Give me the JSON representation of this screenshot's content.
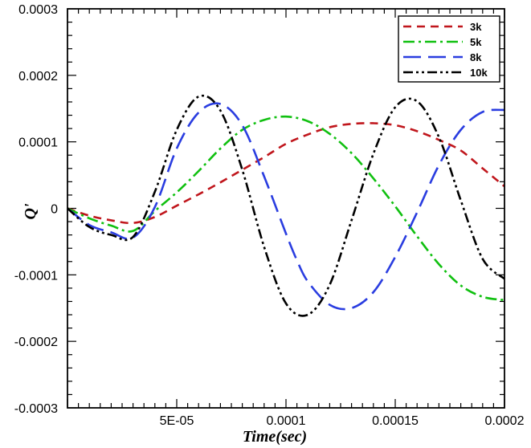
{
  "chart_data": {
    "type": "line",
    "title": "",
    "xlabel": "Time(sec)",
    "ylabel": "Q'",
    "xlim": [
      0,
      0.0002
    ],
    "ylim": [
      -0.0003,
      0.0003
    ],
    "x_ticks": [
      {
        "value": 5e-05,
        "label": "5E-05"
      },
      {
        "value": 0.0001,
        "label": "0.0001"
      },
      {
        "value": 0.00015,
        "label": "0.00015"
      },
      {
        "value": 0.0002,
        "label": "0.0002"
      }
    ],
    "y_ticks": [
      {
        "value": 0.0003,
        "label": "0.0003"
      },
      {
        "value": 0.0002,
        "label": "0.0002"
      },
      {
        "value": 0.0001,
        "label": "0.0001"
      },
      {
        "value": 0,
        "label": "0"
      },
      {
        "value": -0.0001,
        "label": "-0.0001"
      },
      {
        "value": -0.0002,
        "label": "-0.0002"
      },
      {
        "value": -0.0003,
        "label": "-0.0003"
      }
    ],
    "legend_position": "top-right",
    "grid": false,
    "series": [
      {
        "name": "3k",
        "color": "#c0161c",
        "dash": "10,7",
        "x": [
          0,
          1e-05,
          2e-05,
          3e-05,
          4e-05,
          5e-05,
          6e-05,
          7e-05,
          8e-05,
          9e-05,
          0.0001,
          0.00011,
          0.00012,
          0.00013,
          0.00014,
          0.00015,
          0.00016,
          0.00017,
          0.00018,
          0.00019,
          0.0002
        ],
        "y": [
          0,
          -1.1e-05,
          -1.8e-05,
          -2.2e-05,
          -1.3e-05,
          4e-06,
          2.1e-05,
          3.9e-05,
          5.8e-05,
          7.7e-05,
          9.7e-05,
          0.000111,
          0.000122,
          0.000127,
          0.000128,
          0.000125,
          0.000116,
          0.000103,
          8.7e-05,
          6e-05,
          3.3e-05
        ]
      },
      {
        "name": "5k",
        "color": "#10c010",
        "dash": "14,5,3,5",
        "x": [
          0,
          1e-05,
          2e-05,
          3e-05,
          4e-05,
          5e-05,
          6e-05,
          7e-05,
          8e-05,
          9e-05,
          0.0001,
          0.00011,
          0.00012,
          0.00013,
          0.00014,
          0.00015,
          0.00016,
          0.00017,
          0.00018,
          0.00019,
          0.0002
        ],
        "y": [
          0,
          -1.5e-05,
          -2.6e-05,
          -3.4e-05,
          -4e-06,
          2.4e-05,
          5.6e-05,
          9e-05,
          0.000118,
          0.000133,
          0.000138,
          0.000131,
          0.000112,
          8.3e-05,
          4.5e-05,
          3e-06,
          -4.2e-05,
          -8.4e-05,
          -0.000116,
          -0.000133,
          -0.000138
        ]
      },
      {
        "name": "8k",
        "color": "#2a3de0",
        "dash": "22,9",
        "x": [
          0,
          1e-05,
          2e-05,
          3e-05,
          4e-05,
          5e-05,
          6e-05,
          7e-05,
          8e-05,
          9e-05,
          0.0001,
          0.000105,
          0.00011,
          0.00012,
          0.00013,
          0.00014,
          0.00015,
          0.00016,
          0.00017,
          0.00018,
          0.00019,
          0.0002
        ],
        "y": [
          0,
          -2.5e-05,
          -3.6e-05,
          -4.4e-05,
          2e-06,
          9e-05,
          0.000144,
          0.000157,
          0.000125,
          4.8e-05,
          -3.8e-05,
          -7.8e-05,
          -0.00011,
          -0.000145,
          -0.00015,
          -0.000126,
          -7.3e-05,
          -6e-06,
          6.5e-05,
          0.000118,
          0.000145,
          0.000148
        ]
      },
      {
        "name": "10k",
        "color": "#000000",
        "dash": "12,4,3,4,3,4",
        "x": [
          0,
          1e-05,
          2e-05,
          3e-05,
          4e-05,
          5e-05,
          6e-05,
          7e-05,
          8e-05,
          9e-05,
          0.0001,
          0.00011,
          0.00012,
          0.00013,
          0.00014,
          0.00015,
          0.00016,
          0.00017,
          0.00018,
          0.00019,
          0.0002
        ],
        "y": [
          0,
          -2.8e-05,
          -4e-05,
          -4.3e-05,
          2.5e-05,
          0.000118,
          0.000168,
          0.000147,
          5.8e-05,
          -5.8e-05,
          -0.000143,
          -0.00016,
          -0.000115,
          -1.8e-05,
          8.2e-05,
          0.000152,
          0.000161,
          0.000107,
          1.2e-05,
          -7.6e-05,
          -0.000106
        ]
      }
    ]
  }
}
